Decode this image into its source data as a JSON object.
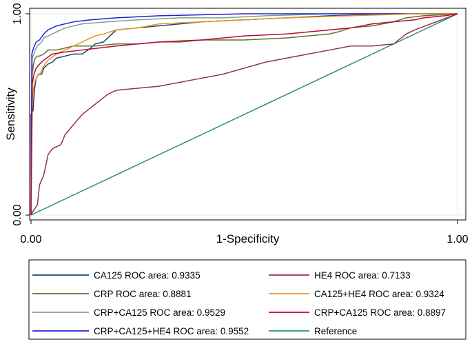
{
  "chart_data": {
    "type": "line",
    "title": "",
    "xlabel": "1-Specificity",
    "ylabel": "Sensitivity",
    "xlim": [
      0,
      1
    ],
    "ylim": [
      0,
      1
    ],
    "x_ticks": [
      "0.00",
      "1.00"
    ],
    "y_ticks": [
      "0.00",
      "1.00"
    ],
    "grid": true,
    "legend_position": "bottom",
    "series": [
      {
        "name": "CA125 ROC area: 0.9335",
        "color": "#1a476f",
        "points": [
          [
            0,
            0
          ],
          [
            0,
            0.5
          ],
          [
            0.005,
            0.52
          ],
          [
            0.008,
            0.62
          ],
          [
            0.012,
            0.68
          ],
          [
            0.018,
            0.7
          ],
          [
            0.025,
            0.7
          ],
          [
            0.03,
            0.73
          ],
          [
            0.04,
            0.75
          ],
          [
            0.05,
            0.76
          ],
          [
            0.06,
            0.78
          ],
          [
            0.08,
            0.79
          ],
          [
            0.1,
            0.8
          ],
          [
            0.12,
            0.8
          ],
          [
            0.14,
            0.83
          ],
          [
            0.15,
            0.85
          ],
          [
            0.17,
            0.86
          ],
          [
            0.19,
            0.9
          ],
          [
            0.2,
            0.92
          ],
          [
            0.25,
            0.93
          ],
          [
            0.3,
            0.94
          ],
          [
            0.35,
            0.95
          ],
          [
            0.4,
            0.96
          ],
          [
            0.5,
            0.97
          ],
          [
            0.6,
            0.98
          ],
          [
            0.7,
            0.99
          ],
          [
            0.85,
            1
          ],
          [
            1,
            1
          ]
        ]
      },
      {
        "name": "CRP ROC area: 0.8881",
        "color": "#55752f",
        "points": [
          [
            0,
            0
          ],
          [
            0.003,
            0.7
          ],
          [
            0.006,
            0.75
          ],
          [
            0.01,
            0.78
          ],
          [
            0.015,
            0.79
          ],
          [
            0.02,
            0.79
          ],
          [
            0.03,
            0.8
          ],
          [
            0.04,
            0.82
          ],
          [
            0.06,
            0.82
          ],
          [
            0.08,
            0.83
          ],
          [
            0.1,
            0.84
          ],
          [
            0.15,
            0.84
          ],
          [
            0.2,
            0.85
          ],
          [
            0.25,
            0.85
          ],
          [
            0.3,
            0.86
          ],
          [
            0.35,
            0.86
          ],
          [
            0.4,
            0.87
          ],
          [
            0.5,
            0.87
          ],
          [
            0.6,
            0.88
          ],
          [
            0.7,
            0.9
          ],
          [
            0.72,
            0.91
          ],
          [
            0.75,
            0.93
          ],
          [
            0.8,
            0.94
          ],
          [
            0.85,
            0.96
          ],
          [
            0.88,
            0.98
          ],
          [
            0.92,
            0.99
          ],
          [
            1,
            1
          ]
        ]
      },
      {
        "name": "CRP+CA125 ROC area: 0.9529",
        "color": "#7f9f8f",
        "points": [
          [
            0,
            0
          ],
          [
            0.003,
            0.78
          ],
          [
            0.01,
            0.82
          ],
          [
            0.015,
            0.84
          ],
          [
            0.025,
            0.86
          ],
          [
            0.03,
            0.88
          ],
          [
            0.05,
            0.9
          ],
          [
            0.08,
            0.93
          ],
          [
            0.12,
            0.95
          ],
          [
            0.18,
            0.96
          ],
          [
            0.25,
            0.97
          ],
          [
            0.35,
            0.98
          ],
          [
            0.45,
            0.98
          ],
          [
            0.55,
            0.99
          ],
          [
            0.7,
            1
          ],
          [
            1,
            1
          ]
        ]
      },
      {
        "name": "CRP+CA125+HE4 ROC area: 0.9552",
        "color": "#2020d8",
        "points": [
          [
            0,
            0
          ],
          [
            0.002,
            0.8
          ],
          [
            0.006,
            0.83
          ],
          [
            0.012,
            0.86
          ],
          [
            0.02,
            0.87
          ],
          [
            0.03,
            0.9
          ],
          [
            0.04,
            0.92
          ],
          [
            0.06,
            0.94
          ],
          [
            0.1,
            0.96
          ],
          [
            0.14,
            0.97
          ],
          [
            0.2,
            0.98
          ],
          [
            0.3,
            0.99
          ],
          [
            0.5,
            1
          ],
          [
            1,
            1
          ]
        ]
      },
      {
        "name": "HE4 ROC area: 0.7133",
        "color": "#90353b",
        "points": [
          [
            0,
            0
          ],
          [
            0.005,
            0.02
          ],
          [
            0.015,
            0.05
          ],
          [
            0.02,
            0.15
          ],
          [
            0.03,
            0.2
          ],
          [
            0.04,
            0.3
          ],
          [
            0.05,
            0.33
          ],
          [
            0.07,
            0.35
          ],
          [
            0.08,
            0.4
          ],
          [
            0.1,
            0.45
          ],
          [
            0.12,
            0.5
          ],
          [
            0.15,
            0.55
          ],
          [
            0.18,
            0.6
          ],
          [
            0.2,
            0.62
          ],
          [
            0.25,
            0.63
          ],
          [
            0.3,
            0.64
          ],
          [
            0.35,
            0.66
          ],
          [
            0.4,
            0.68
          ],
          [
            0.45,
            0.7
          ],
          [
            0.5,
            0.73
          ],
          [
            0.55,
            0.76
          ],
          [
            0.6,
            0.78
          ],
          [
            0.65,
            0.8
          ],
          [
            0.7,
            0.82
          ],
          [
            0.75,
            0.84
          ],
          [
            0.8,
            0.84
          ],
          [
            0.85,
            0.85
          ],
          [
            0.88,
            0.9
          ],
          [
            0.9,
            0.92
          ],
          [
            0.95,
            0.96
          ],
          [
            1,
            1
          ]
        ]
      },
      {
        "name": "CA125+HE4 ROC area: 0.9324",
        "color": "#e8951e",
        "points": [
          [
            0,
            0
          ],
          [
            0.003,
            0.55
          ],
          [
            0.006,
            0.63
          ],
          [
            0.01,
            0.67
          ],
          [
            0.015,
            0.69
          ],
          [
            0.02,
            0.7
          ],
          [
            0.025,
            0.72
          ],
          [
            0.03,
            0.74
          ],
          [
            0.04,
            0.77
          ],
          [
            0.06,
            0.8
          ],
          [
            0.08,
            0.82
          ],
          [
            0.1,
            0.84
          ],
          [
            0.12,
            0.86
          ],
          [
            0.14,
            0.88
          ],
          [
            0.15,
            0.89
          ],
          [
            0.17,
            0.9
          ],
          [
            0.2,
            0.92
          ],
          [
            0.25,
            0.93
          ],
          [
            0.3,
            0.95
          ],
          [
            0.4,
            0.96
          ],
          [
            0.5,
            0.97
          ],
          [
            0.6,
            0.98
          ],
          [
            0.75,
            0.99
          ],
          [
            0.9,
            1
          ],
          [
            1,
            1
          ]
        ]
      },
      {
        "name": "CRP+CA125 ROC area: 0.8897",
        "color": "#c10534",
        "points": [
          [
            0,
            0
          ],
          [
            0.003,
            0.65
          ],
          [
            0.007,
            0.7
          ],
          [
            0.012,
            0.73
          ],
          [
            0.02,
            0.75
          ],
          [
            0.03,
            0.77
          ],
          [
            0.05,
            0.8
          ],
          [
            0.08,
            0.81
          ],
          [
            0.12,
            0.82
          ],
          [
            0.2,
            0.84
          ],
          [
            0.25,
            0.85
          ],
          [
            0.3,
            0.86
          ],
          [
            0.4,
            0.87
          ],
          [
            0.5,
            0.89
          ],
          [
            0.6,
            0.9
          ],
          [
            0.7,
            0.92
          ],
          [
            0.75,
            0.93
          ],
          [
            0.8,
            0.95
          ],
          [
            0.85,
            0.96
          ],
          [
            0.9,
            0.97
          ],
          [
            0.92,
            0.98
          ],
          [
            0.97,
            0.99
          ],
          [
            1,
            1
          ]
        ]
      },
      {
        "name": "Reference",
        "color": "#2e8b7e",
        "points": [
          [
            0,
            0
          ],
          [
            1,
            1
          ]
        ]
      }
    ]
  }
}
